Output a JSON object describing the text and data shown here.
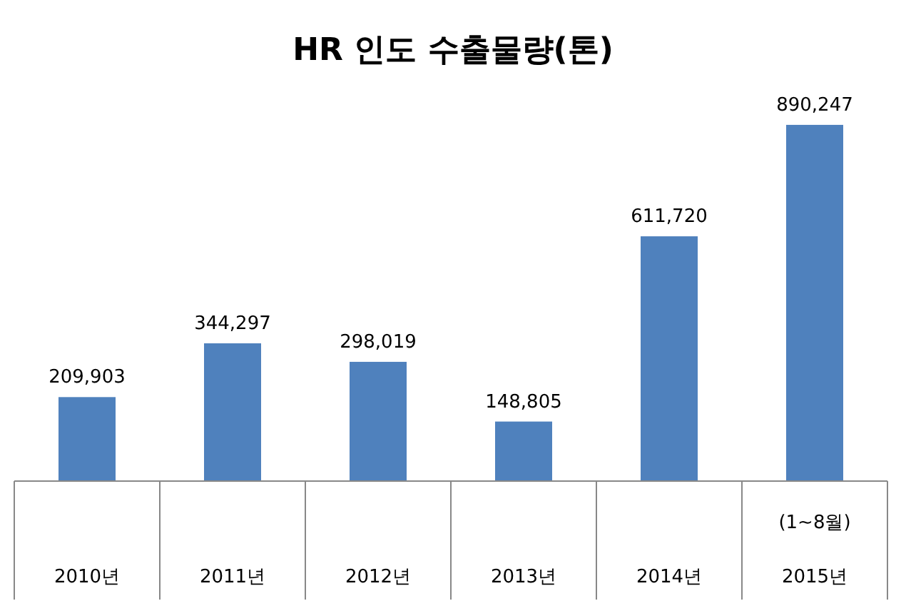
{
  "chart_data": {
    "type": "bar",
    "title": "HR 인도 수출물량(톤)",
    "categories": [
      "2010년",
      "2011년",
      "2012년",
      "2013년",
      "2014년",
      "2015년"
    ],
    "values": [
      209903,
      344297,
      298019,
      148805,
      611720,
      890247
    ],
    "value_labels": [
      "209,903",
      "344,297",
      "298,019",
      "148,805",
      "611,720",
      "890,247"
    ],
    "color": "#4f81bd",
    "annotations": [
      "(1~8월)"
    ]
  }
}
